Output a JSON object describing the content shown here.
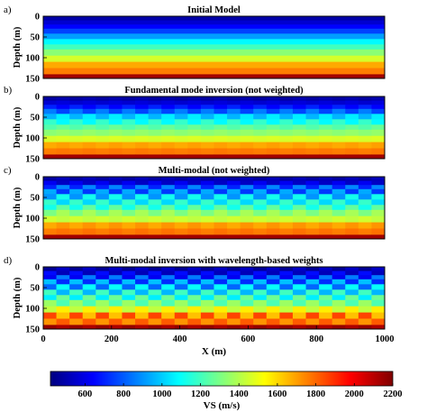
{
  "chart_data": [
    {
      "type": "heatmap",
      "panel_letter": "a)",
      "title": "Initial Model",
      "ylabel": "Depth (m)",
      "xlim": [
        0,
        1000
      ],
      "ylim": [
        150,
        0
      ],
      "yticks": [
        "0",
        "50",
        "100",
        "150"
      ],
      "pattern": "flat",
      "layers": [
        {
          "top": 0,
          "bottom": 10,
          "vs": 490
        },
        {
          "top": 10,
          "bottom": 20,
          "vs": 560
        },
        {
          "top": 20,
          "bottom": 30,
          "vs": 640
        },
        {
          "top": 30,
          "bottom": 42,
          "vs": 760
        },
        {
          "top": 42,
          "bottom": 55,
          "vs": 920
        },
        {
          "top": 55,
          "bottom": 68,
          "vs": 1080
        },
        {
          "top": 68,
          "bottom": 80,
          "vs": 1200
        },
        {
          "top": 80,
          "bottom": 95,
          "vs": 1330
        },
        {
          "top": 95,
          "bottom": 110,
          "vs": 1460
        },
        {
          "top": 110,
          "bottom": 125,
          "vs": 1680
        },
        {
          "top": 125,
          "bottom": 140,
          "vs": 1760
        },
        {
          "top": 140,
          "bottom": 150,
          "vs": 2140
        }
      ]
    },
    {
      "type": "heatmap",
      "panel_letter": "b)",
      "title": "Fundamental mode inversion (not weighted)",
      "ylabel": "Depth (m)",
      "xlim": [
        0,
        1000
      ],
      "ylim": [
        150,
        0
      ],
      "yticks": [
        "0",
        "50",
        "100",
        "150"
      ],
      "pattern": "checker",
      "layers": [
        {
          "top": 0,
          "bottom": 10,
          "vs": 480,
          "alt": 500
        },
        {
          "top": 10,
          "bottom": 20,
          "vs": 560,
          "alt": 580
        },
        {
          "top": 20,
          "bottom": 30,
          "vs": 700,
          "alt": 640
        },
        {
          "top": 30,
          "bottom": 42,
          "vs": 860,
          "alt": 760
        },
        {
          "top": 42,
          "bottom": 55,
          "vs": 960,
          "alt": 1060
        },
        {
          "top": 55,
          "bottom": 68,
          "vs": 1180,
          "alt": 1080
        },
        {
          "top": 68,
          "bottom": 80,
          "vs": 1230,
          "alt": 1270
        },
        {
          "top": 80,
          "bottom": 95,
          "vs": 1330,
          "alt": 1350
        },
        {
          "top": 95,
          "bottom": 110,
          "vs": 1460,
          "alt": 1470
        },
        {
          "top": 110,
          "bottom": 125,
          "vs": 1680,
          "alt": 1700
        },
        {
          "top": 125,
          "bottom": 140,
          "vs": 1760,
          "alt": 1770
        },
        {
          "top": 140,
          "bottom": 150,
          "vs": 2140,
          "alt": 2140
        }
      ]
    },
    {
      "type": "heatmap",
      "panel_letter": "c)",
      "title": "Multi-modal (not weighted)",
      "ylabel": "Depth (m)",
      "xlim": [
        0,
        1000
      ],
      "ylim": [
        150,
        0
      ],
      "yticks": [
        "0",
        "50",
        "100",
        "150"
      ],
      "pattern": "checker",
      "layers": [
        {
          "top": 0,
          "bottom": 10,
          "vs": 480,
          "alt": 520
        },
        {
          "top": 10,
          "bottom": 20,
          "vs": 620,
          "alt": 540
        },
        {
          "top": 20,
          "bottom": 30,
          "vs": 700,
          "alt": 880
        },
        {
          "top": 30,
          "bottom": 42,
          "vs": 940,
          "alt": 740
        },
        {
          "top": 42,
          "bottom": 55,
          "vs": 900,
          "alt": 1120
        },
        {
          "top": 55,
          "bottom": 68,
          "vs": 1180,
          "alt": 1020
        },
        {
          "top": 68,
          "bottom": 80,
          "vs": 1120,
          "alt": 1260
        },
        {
          "top": 80,
          "bottom": 95,
          "vs": 1300,
          "alt": 1380
        },
        {
          "top": 95,
          "bottom": 110,
          "vs": 1450,
          "alt": 1420
        },
        {
          "top": 110,
          "bottom": 125,
          "vs": 1680,
          "alt": 1720
        },
        {
          "top": 125,
          "bottom": 140,
          "vs": 1760,
          "alt": 1780
        },
        {
          "top": 140,
          "bottom": 150,
          "vs": 2140,
          "alt": 2140
        }
      ]
    },
    {
      "type": "heatmap",
      "panel_letter": "d)",
      "title": "Multi-modal inversion with wavelength-based weights",
      "ylabel": "Depth (m)",
      "xlabel": "X (m)",
      "xlim": [
        0,
        1000
      ],
      "ylim": [
        150,
        0
      ],
      "xticks": [
        "0",
        "200",
        "400",
        "600",
        "800",
        "1000"
      ],
      "yticks": [
        "0",
        "50",
        "100",
        "150"
      ],
      "pattern": "checker",
      "layers": [
        {
          "top": 0,
          "bottom": 10,
          "vs": 460,
          "alt": 540
        },
        {
          "top": 10,
          "bottom": 20,
          "vs": 660,
          "alt": 520
        },
        {
          "top": 20,
          "bottom": 30,
          "vs": 620,
          "alt": 860
        },
        {
          "top": 30,
          "bottom": 42,
          "vs": 980,
          "alt": 720
        },
        {
          "top": 42,
          "bottom": 55,
          "vs": 820,
          "alt": 1100
        },
        {
          "top": 55,
          "bottom": 68,
          "vs": 1200,
          "alt": 960
        },
        {
          "top": 68,
          "bottom": 80,
          "vs": 1060,
          "alt": 1280
        },
        {
          "top": 80,
          "bottom": 95,
          "vs": 1360,
          "alt": 1220
        },
        {
          "top": 95,
          "bottom": 110,
          "vs": 1420,
          "alt": 1560
        },
        {
          "top": 110,
          "bottom": 125,
          "vs": 1860,
          "alt": 1640
        },
        {
          "top": 125,
          "bottom": 140,
          "vs": 1720,
          "alt": 1820
        },
        {
          "top": 140,
          "bottom": 150,
          "vs": 2160,
          "alt": 2120
        }
      ]
    }
  ],
  "colorbar": {
    "label": "VS (m/s)",
    "range": [
      420,
      2200
    ],
    "ticks": [
      "600",
      "800",
      "1000",
      "1200",
      "1400",
      "1600",
      "1800",
      "2000",
      "2200"
    ],
    "colormap": "jet"
  }
}
